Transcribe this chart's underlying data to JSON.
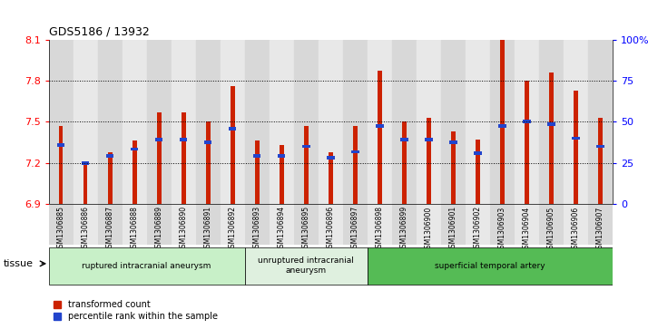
{
  "title": "GDS5186 / 13932",
  "samples": [
    "GSM1306885",
    "GSM1306886",
    "GSM1306887",
    "GSM1306888",
    "GSM1306889",
    "GSM1306890",
    "GSM1306891",
    "GSM1306892",
    "GSM1306893",
    "GSM1306894",
    "GSM1306895",
    "GSM1306896",
    "GSM1306897",
    "GSM1306898",
    "GSM1306899",
    "GSM1306900",
    "GSM1306901",
    "GSM1306902",
    "GSM1306903",
    "GSM1306904",
    "GSM1306905",
    "GSM1306906",
    "GSM1306907"
  ],
  "red_values": [
    7.47,
    7.19,
    7.28,
    7.36,
    7.57,
    7.57,
    7.5,
    7.76,
    7.36,
    7.33,
    7.47,
    7.28,
    7.47,
    7.87,
    7.5,
    7.53,
    7.43,
    7.37,
    8.1,
    7.8,
    7.86,
    7.73,
    7.53
  ],
  "blue_values": [
    7.33,
    7.2,
    7.25,
    7.3,
    7.37,
    7.37,
    7.35,
    7.45,
    7.25,
    7.25,
    7.32,
    7.24,
    7.28,
    7.47,
    7.37,
    7.37,
    7.35,
    7.27,
    7.47,
    7.5,
    7.48,
    7.38,
    7.32
  ],
  "groups": [
    {
      "label": "ruptured intracranial aneurysm",
      "start": 0,
      "end": 7,
      "color": "#c8f0c8"
    },
    {
      "label": "unruptured intracranial\naneurysm",
      "start": 8,
      "end": 12,
      "color": "#dff0df"
    },
    {
      "label": "superficial temporal artery",
      "start": 13,
      "end": 22,
      "color": "#55bb55"
    }
  ],
  "ymin": 6.9,
  "ymax": 8.1,
  "yticks": [
    6.9,
    7.2,
    7.5,
    7.8,
    8.1
  ],
  "right_yticks_vals": [
    0,
    25,
    50,
    75,
    100
  ],
  "right_ytick_labels": [
    "0",
    "25",
    "50",
    "75",
    "100%"
  ],
  "bar_color": "#cc2200",
  "blue_color": "#2244cc",
  "cell_bg_even": "#d8d8d8",
  "cell_bg_odd": "#e8e8e8",
  "plot_bg": "#ffffff",
  "bar_width": 0.18
}
